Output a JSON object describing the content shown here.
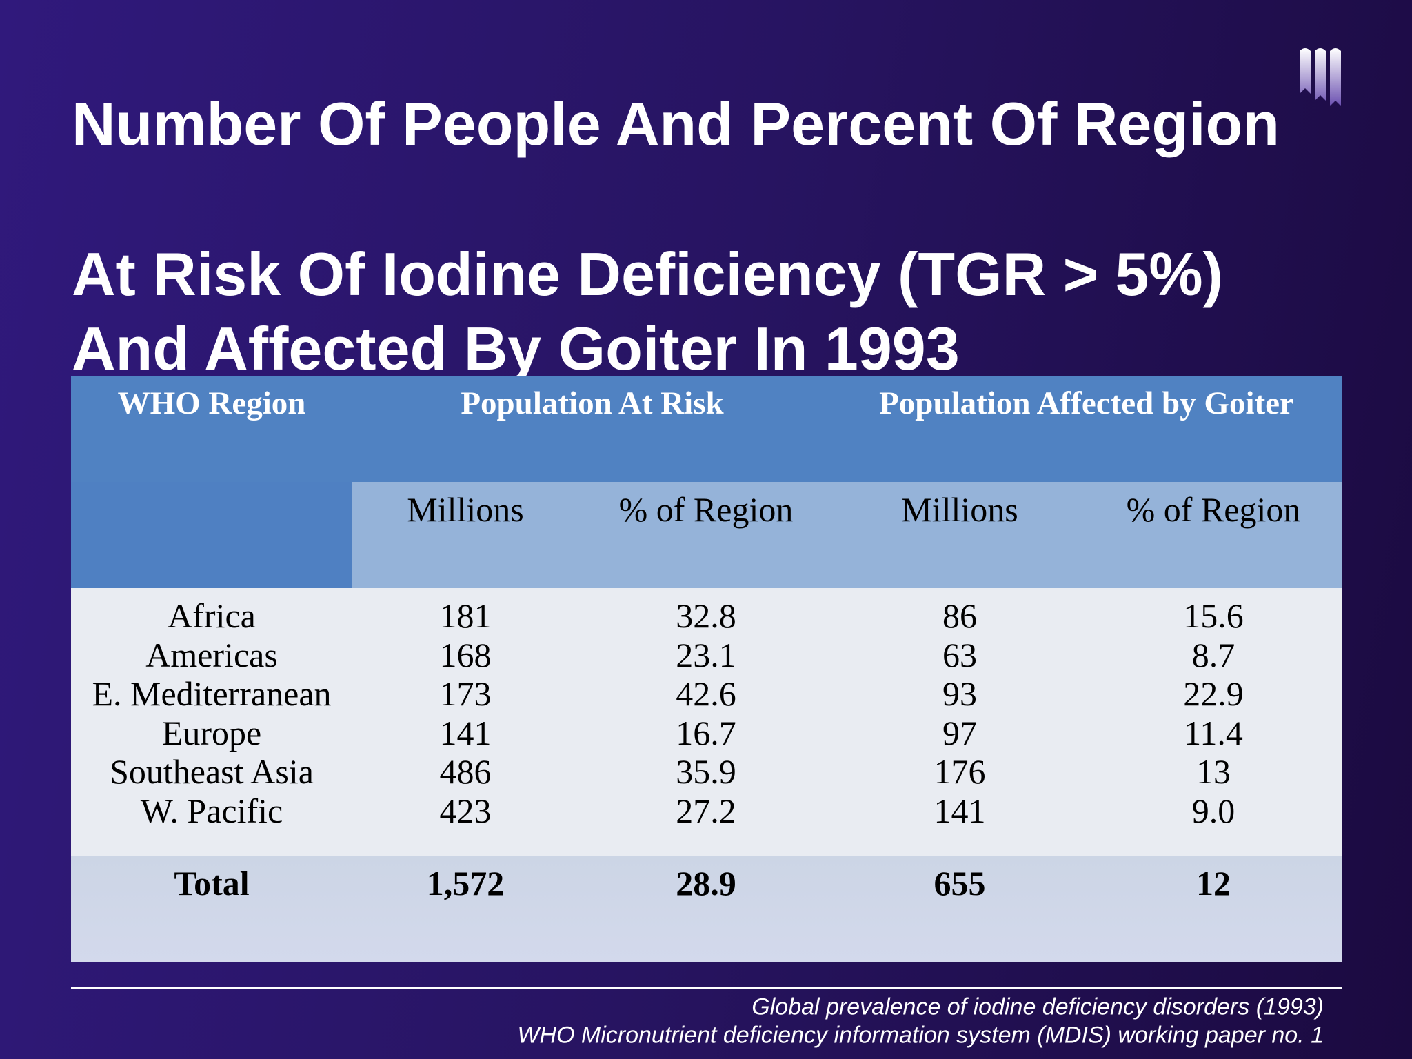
{
  "title": {
    "lines": [
      "Number Of People And Percent Of Region",
      "At Risk Of Iodine Deficiency (TGR > 5%)",
      "And Affected By Goiter In 1993"
    ]
  },
  "table": {
    "header": {
      "region": "WHO Region",
      "groups": [
        "Population At Risk",
        "Population Affected by Goiter"
      ],
      "subheaders": [
        "Millions",
        "% of Region",
        "Millions",
        "% of Region"
      ]
    },
    "rows": [
      [
        "Africa",
        "181",
        "32.8",
        "86",
        "15.6"
      ],
      [
        "Americas",
        "168",
        "23.1",
        "63",
        "8.7"
      ],
      [
        "E. Mediterranean",
        "173",
        "42.6",
        "93",
        "22.9"
      ],
      [
        "Europe",
        "141",
        "16.7",
        "97",
        "11.4"
      ],
      [
        "Southeast Asia",
        "486",
        "35.9",
        "176",
        "13"
      ],
      [
        "W. Pacific",
        "423",
        "27.2",
        "141",
        "9.0"
      ]
    ],
    "total": [
      "Total",
      "1,572",
      "28.9",
      "655",
      "12"
    ]
  },
  "source": [
    "Global prevalence of iodine deficiency disorders (1993)",
    "WHO Micronutrient deficiency information system (MDIS) working paper no. 1"
  ]
}
